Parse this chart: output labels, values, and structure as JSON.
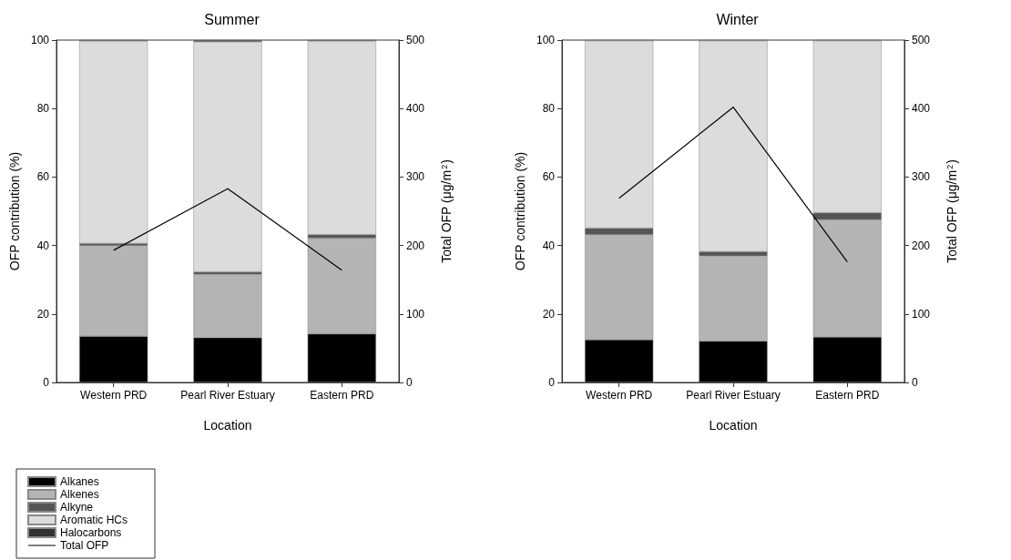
{
  "chart_data": [
    {
      "type": "bar",
      "title": "Summer",
      "xlabel": "Location",
      "ylabel": "OFP contribution (%)",
      "y2label": "Total OFP (μg/m$^{2}$)",
      "categories": [
        "Western PRD",
        "Pearl River Estuary",
        "Eastern PRD"
      ],
      "stacked": true,
      "series": [
        {
          "name": "Alkanes",
          "color": "#000000",
          "values": [
            13.5,
            13.1,
            14.2
          ]
        },
        {
          "name": "Alkenes",
          "color": "#b4b4b4",
          "values": [
            26.4,
            18.4,
            27.9
          ]
        },
        {
          "name": "Alkyne",
          "color": "#555555",
          "values": [
            0.7,
            0.8,
            1.1
          ]
        },
        {
          "name": "Aromatic HCs",
          "color": "#dcdcdc",
          "values": [
            59.1,
            67.2,
            56.5
          ]
        },
        {
          "name": "Halocarbons",
          "color": "#333333",
          "values": [
            0.3,
            0.5,
            0.3
          ]
        },
        {
          "name": "Total OFP",
          "type": "line",
          "axis": "y2",
          "color": "#000000",
          "values": [
            193,
            283,
            164
          ]
        }
      ],
      "ylim": [
        0,
        100
      ],
      "yticks": [
        0,
        20,
        40,
        60,
        80,
        100
      ],
      "y2lim": [
        0,
        500
      ],
      "y2ticks": [
        0,
        100,
        200,
        300,
        400,
        500
      ],
      "grid": false,
      "legend": "bottom left",
      "marker": "none",
      "line_style": "solid"
    },
    {
      "type": "bar",
      "title": "Winter",
      "xlabel": "Location",
      "ylabel": "OFP contribution (%)",
      "y2label": "Total OFP (μg/m$^{2}$)",
      "categories": [
        "Western PRD",
        "Pearl River Estuary",
        "Eastern PRD"
      ],
      "stacked": true,
      "series": [
        {
          "color": "#000000",
          "values": [
            12.5,
            12.1,
            13.3
          ]
        },
        {
          "color": "#b4b4b4",
          "values": [
            30.6,
            24.8,
            34.2
          ]
        },
        {
          "color": "#555555",
          "values": [
            2.0,
            1.3,
            2.1
          ]
        },
        {
          "color": "#dcdcdc",
          "values": [
            54.7,
            61.6,
            50.2
          ]
        },
        {
          "color": "#333333",
          "values": [
            0.2,
            0.2,
            0.2
          ]
        },
        {
          "type": "line",
          "axis": "y2",
          "color": "#000000",
          "values": [
            269,
            402,
            176
          ]
        }
      ],
      "ylim": [
        0,
        100
      ],
      "yticks": [
        0,
        20,
        40,
        60,
        80,
        100
      ],
      "y2lim": [
        0,
        500
      ],
      "y2ticks": [
        0,
        100,
        200,
        300,
        400,
        500
      ],
      "grid": false,
      "legend": false,
      "marker": "none",
      "line_style": "solid"
    }
  ]
}
